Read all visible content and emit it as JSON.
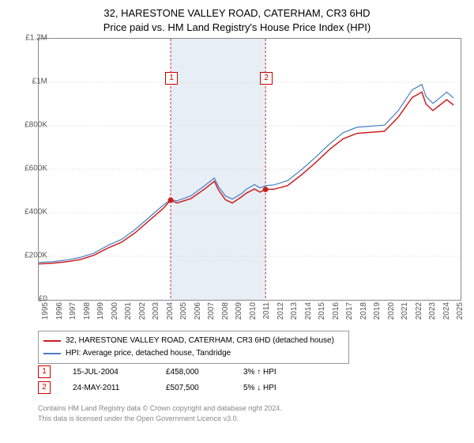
{
  "title": {
    "line1": "32, HARESTONE VALLEY ROAD, CATERHAM, CR3 6HD",
    "line2": "Price paid vs. HM Land Registry's House Price Index (HPI)"
  },
  "chart": {
    "type": "line",
    "xlim": [
      1995,
      2025.5
    ],
    "ylim": [
      0,
      1200000
    ],
    "y_ticks": [
      0,
      200000,
      400000,
      600000,
      800000,
      1000000,
      1200000
    ],
    "y_tick_labels": [
      "£0",
      "£200K",
      "£400K",
      "£600K",
      "£800K",
      "£1M",
      "£1.2M"
    ],
    "x_ticks": [
      1995,
      1996,
      1997,
      1998,
      1999,
      2000,
      2001,
      2002,
      2003,
      2004,
      2005,
      2006,
      2007,
      2008,
      2009,
      2010,
      2011,
      2012,
      2013,
      2014,
      2015,
      2016,
      2017,
      2018,
      2019,
      2020,
      2021,
      2022,
      2023,
      2024,
      2025
    ],
    "grid_color": "#d8d8d8",
    "background_color": "#ffffff",
    "shaded_band": {
      "x_start": 2004.54,
      "x_end": 2011.4,
      "color": "#e8eef5"
    },
    "series": [
      {
        "name": "property",
        "color": "#cc1f1f",
        "line_width": 1.5,
        "points": [
          [
            1995,
            165000
          ],
          [
            1996,
            168000
          ],
          [
            1997,
            175000
          ],
          [
            1998,
            185000
          ],
          [
            1999,
            205000
          ],
          [
            2000,
            238000
          ],
          [
            2001,
            265000
          ],
          [
            2002,
            310000
          ],
          [
            2003,
            365000
          ],
          [
            2004,
            420000
          ],
          [
            2004.54,
            458000
          ],
          [
            2005,
            445000
          ],
          [
            2006,
            465000
          ],
          [
            2007,
            510000
          ],
          [
            2007.7,
            545000
          ],
          [
            2008,
            505000
          ],
          [
            2008.5,
            460000
          ],
          [
            2009,
            445000
          ],
          [
            2009.7,
            475000
          ],
          [
            2010,
            490000
          ],
          [
            2010.6,
            510000
          ],
          [
            2011,
            495000
          ],
          [
            2011.4,
            507500
          ],
          [
            2012,
            508000
          ],
          [
            2013,
            525000
          ],
          [
            2014,
            575000
          ],
          [
            2015,
            630000
          ],
          [
            2016,
            690000
          ],
          [
            2017,
            740000
          ],
          [
            2018,
            765000
          ],
          [
            2019,
            770000
          ],
          [
            2020,
            775000
          ],
          [
            2021,
            840000
          ],
          [
            2022,
            930000
          ],
          [
            2022.7,
            955000
          ],
          [
            2023,
            900000
          ],
          [
            2023.5,
            870000
          ],
          [
            2024,
            895000
          ],
          [
            2024.5,
            920000
          ],
          [
            2025,
            895000
          ]
        ]
      },
      {
        "name": "hpi",
        "color": "#4a7fc4",
        "line_width": 1.2,
        "points": [
          [
            1995,
            172000
          ],
          [
            1996,
            175000
          ],
          [
            1997,
            183000
          ],
          [
            1998,
            195000
          ],
          [
            1999,
            215000
          ],
          [
            2000,
            250000
          ],
          [
            2001,
            278000
          ],
          [
            2002,
            325000
          ],
          [
            2003,
            380000
          ],
          [
            2004,
            435000
          ],
          [
            2004.54,
            460000
          ],
          [
            2005,
            455000
          ],
          [
            2006,
            478000
          ],
          [
            2007,
            525000
          ],
          [
            2007.7,
            560000
          ],
          [
            2008,
            520000
          ],
          [
            2008.5,
            478000
          ],
          [
            2009,
            463000
          ],
          [
            2009.7,
            490000
          ],
          [
            2010,
            508000
          ],
          [
            2010.6,
            530000
          ],
          [
            2011,
            515000
          ],
          [
            2011.4,
            525000
          ],
          [
            2012,
            528000
          ],
          [
            2013,
            548000
          ],
          [
            2014,
            598000
          ],
          [
            2015,
            655000
          ],
          [
            2016,
            715000
          ],
          [
            2017,
            768000
          ],
          [
            2018,
            793000
          ],
          [
            2019,
            798000
          ],
          [
            2020,
            803000
          ],
          [
            2021,
            870000
          ],
          [
            2022,
            965000
          ],
          [
            2022.7,
            990000
          ],
          [
            2023,
            935000
          ],
          [
            2023.5,
            903000
          ],
          [
            2024,
            928000
          ],
          [
            2024.5,
            955000
          ],
          [
            2025,
            928000
          ]
        ]
      }
    ],
    "event_markers": [
      {
        "x": 2004.54,
        "y": 458000,
        "label": "1"
      },
      {
        "x": 2011.4,
        "y": 507500,
        "label": "2"
      }
    ],
    "marker_box_offset_y": 42
  },
  "legend": {
    "items": [
      {
        "color": "#cc1f1f",
        "label": "32, HARESTONE VALLEY ROAD, CATERHAM, CR3 6HD (detached house)"
      },
      {
        "color": "#4a7fc4",
        "label": "HPI: Average price, detached house, Tandridge"
      }
    ]
  },
  "events_table": [
    {
      "num": "1",
      "date": "15-JUL-2004",
      "price": "£458,000",
      "delta": "3% ↑ HPI"
    },
    {
      "num": "2",
      "date": "24-MAY-2011",
      "price": "£507,500",
      "delta": "5% ↓ HPI"
    }
  ],
  "footer": {
    "line1": "Contains HM Land Registry data © Crown copyright and database right 2024.",
    "line2": "This data is licensed under the Open Government Licence v3.0."
  }
}
